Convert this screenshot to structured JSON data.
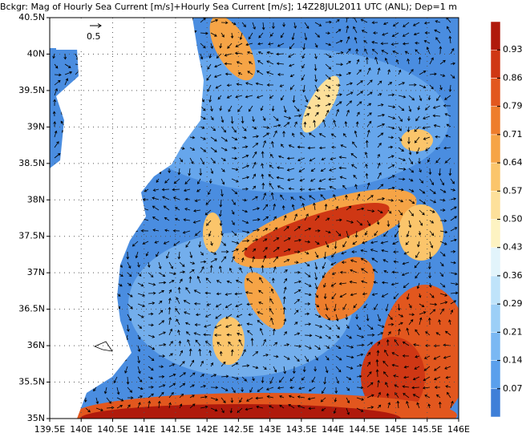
{
  "title": "Bckgr: Mag of Hourly Sea Current [m/s]+Hourly Sea Current [m/s]; 14Z28JUL2011 UTC (ANL); Dep=1 m",
  "map": {
    "xlim": [
      139.5,
      146
    ],
    "ylim": [
      35,
      40.5
    ],
    "xticks": [
      {
        "value": 139.5,
        "label": "139.5E"
      },
      {
        "value": 140,
        "label": "140E"
      },
      {
        "value": 140.5,
        "label": "140.5E"
      },
      {
        "value": 141,
        "label": "141E"
      },
      {
        "value": 141.5,
        "label": "141.5E"
      },
      {
        "value": 142,
        "label": "142E"
      },
      {
        "value": 142.5,
        "label": "142.5E"
      },
      {
        "value": 143,
        "label": "143E"
      },
      {
        "value": 143.5,
        "label": "143.5E"
      },
      {
        "value": 144,
        "label": "144E"
      },
      {
        "value": 144.5,
        "label": "144.5E"
      },
      {
        "value": 145,
        "label": "145E"
      },
      {
        "value": 145.5,
        "label": "145.5E"
      },
      {
        "value": 146,
        "label": "146E"
      }
    ],
    "yticks": [
      {
        "value": 35,
        "label": "35N"
      },
      {
        "value": 35.5,
        "label": "35.5N"
      },
      {
        "value": 36,
        "label": "36N"
      },
      {
        "value": 36.5,
        "label": "36.5N"
      },
      {
        "value": 37,
        "label": "37N"
      },
      {
        "value": 37.5,
        "label": "37.5N"
      },
      {
        "value": 38,
        "label": "38N"
      },
      {
        "value": 38.5,
        "label": "38.5N"
      },
      {
        "value": 39,
        "label": "39N"
      },
      {
        "value": 39.5,
        "label": "39.5N"
      },
      {
        "value": 40,
        "label": "40N"
      },
      {
        "value": 40.5,
        "label": "40.5N"
      }
    ],
    "reference_vector": 0.5,
    "grid": true
  },
  "colorbar": {
    "levels": [
      0.07,
      0.14,
      0.21,
      0.29,
      0.36,
      0.43,
      {
        "value": 0.5,
        "label": "0.50"
      },
      0.57,
      0.64,
      0.71,
      0.79,
      0.86,
      0.93
    ],
    "colors": [
      "#3f7fd8",
      "#5a9fec",
      "#7ab8f3",
      "#9ccff7",
      "#bfe3fa",
      "#e2f4fb",
      "#fdf3c2",
      "#fde09a",
      "#fbc56b",
      "#f6a446",
      "#ee7d2c",
      "#e2571e",
      "#cf3714",
      "#b01a0c"
    ]
  }
}
